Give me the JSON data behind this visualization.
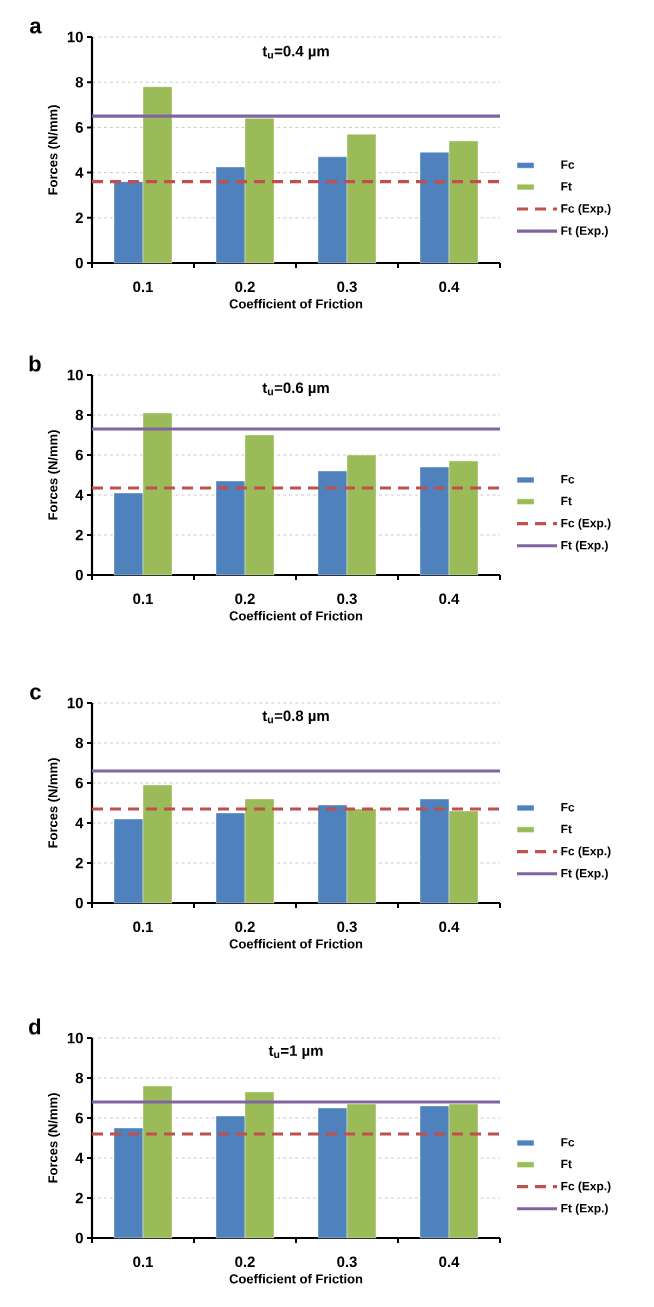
{
  "chart_data": [
    {
      "type": "bar",
      "title": "t$_{u}$=0.4 µm",
      "xlabel": "Coefficient of Friction",
      "ylabel": "Forces (N/mm)",
      "annotations": [
        "a"
      ],
      "categories": [
        "0.1",
        "0.2",
        "0.3",
        "0.4"
      ],
      "series": [
        {
          "name": "Fc",
          "color": "#4f81bd",
          "values": [
            3.6,
            4.25,
            4.7,
            4.9
          ]
        },
        {
          "name": "Ft",
          "color": "#9bbb59",
          "values": [
            7.8,
            6.4,
            5.7,
            5.4
          ]
        }
      ],
      "ref_lines": [
        {
          "axis": "y",
          "value": 3.6,
          "label": "Fc (Exp.)",
          "color": "#c0504d",
          "line_style": "dashed"
        },
        {
          "axis": "y",
          "value": 6.5,
          "label": "Ft (Exp.)",
          "color": "#8064a2",
          "line_style": "solid"
        }
      ],
      "ylim": [
        0,
        10
      ],
      "yticks": [
        0,
        2,
        4,
        6,
        8,
        10
      ],
      "grid": "y",
      "legend": "right"
    },
    {
      "type": "bar",
      "title": "t$_{u}$=0.6 µm",
      "xlabel": "Coefficient of Friction",
      "ylabel": "Forces (N/mm)",
      "annotations": [
        "b"
      ],
      "categories": [
        "0.1",
        "0.2",
        "0.3",
        "0.4"
      ],
      "series": [
        {
          "name": "Fc",
          "color": "#4f81bd",
          "values": [
            4.1,
            4.7,
            5.2,
            5.4
          ]
        },
        {
          "name": "Ft",
          "color": "#9bbb59",
          "values": [
            8.1,
            7.0,
            6.0,
            5.7
          ]
        }
      ],
      "ref_lines": [
        {
          "axis": "y",
          "value": 4.35,
          "label": "Fc (Exp.)",
          "color": "#c0504d",
          "line_style": "dashed"
        },
        {
          "axis": "y",
          "value": 7.3,
          "label": "Ft (Exp.)",
          "color": "#8064a2",
          "line_style": "solid"
        }
      ],
      "ylim": [
        0,
        10
      ],
      "yticks": [
        0,
        2,
        4,
        6,
        8,
        10
      ],
      "grid": "y",
      "legend": "right"
    },
    {
      "type": "bar",
      "title": "t$_{u}$=0.8 µm",
      "xlabel": "Coefficient of Friction",
      "ylabel": "Forces (N/mm)",
      "annotations": [
        "c"
      ],
      "categories": [
        "0.1",
        "0.2",
        "0.3",
        "0.4"
      ],
      "series": [
        {
          "name": "Fc",
          "color": "#4f81bd",
          "values": [
            4.2,
            4.5,
            4.9,
            5.2
          ]
        },
        {
          "name": "Ft",
          "color": "#9bbb59",
          "values": [
            5.9,
            5.2,
            4.7,
            4.6
          ]
        }
      ],
      "ref_lines": [
        {
          "axis": "y",
          "value": 4.7,
          "label": "Fc (Exp.)",
          "color": "#c0504d",
          "line_style": "dashed"
        },
        {
          "axis": "y",
          "value": 6.6,
          "label": "Ft (Exp.)",
          "color": "#8064a2",
          "line_style": "solid"
        }
      ],
      "ylim": [
        0,
        10
      ],
      "yticks": [
        0,
        2,
        4,
        6,
        8,
        10
      ],
      "grid": "y",
      "legend": "right"
    },
    {
      "type": "bar",
      "title": "t$_{u}$=1 µm",
      "xlabel": "Coefficient of Friction",
      "ylabel": "Forces (N/mm)",
      "annotations": [
        "d"
      ],
      "categories": [
        "0.1",
        "0.2",
        "0.3",
        "0.4"
      ],
      "series": [
        {
          "name": "Fc",
          "color": "#4f81bd",
          "values": [
            5.5,
            6.1,
            6.5,
            6.6
          ]
        },
        {
          "name": "Ft",
          "color": "#9bbb59",
          "values": [
            7.6,
            7.3,
            6.7,
            6.7
          ]
        }
      ],
      "ref_lines": [
        {
          "axis": "y",
          "value": 5.2,
          "label": "Fc (Exp.)",
          "color": "#c0504d",
          "line_style": "dashed"
        },
        {
          "axis": "y",
          "value": 6.8,
          "label": "Ft (Exp.)",
          "color": "#8064a2",
          "line_style": "solid"
        }
      ],
      "ylim": [
        0,
        10
      ],
      "yticks": [
        0,
        2,
        4,
        6,
        8,
        10
      ],
      "grid": "y",
      "legend": "right"
    }
  ]
}
